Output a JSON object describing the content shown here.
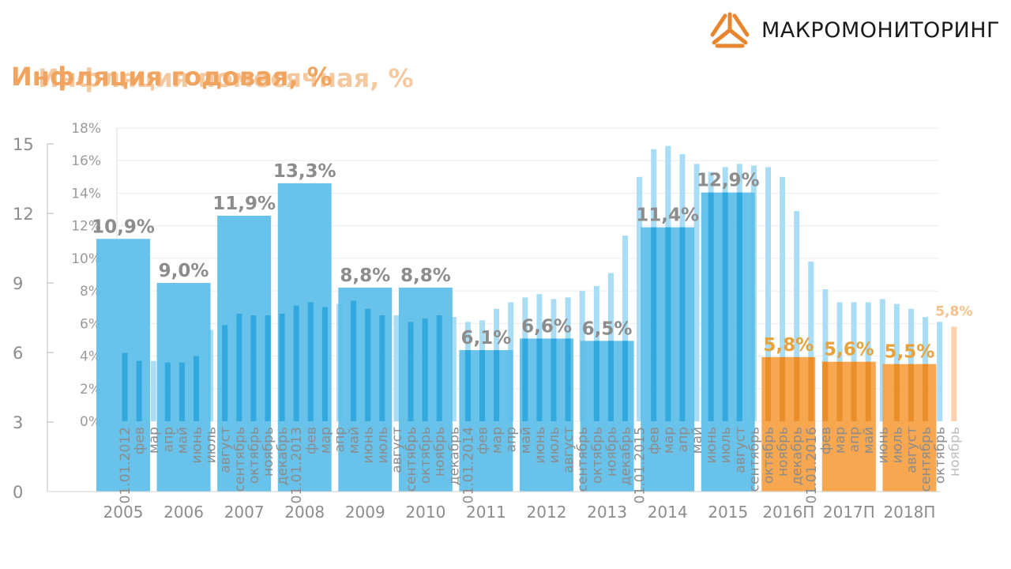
{
  "brand": {
    "name": "МАКРОМОНИТОРИНГ",
    "logo_icon": "triangle-arrows-logo-icon",
    "colors": {
      "orange": "#e8852f",
      "dark": "#1a1a1a"
    }
  },
  "titles": {
    "front": "Инфляция годовая, %",
    "back": "Инфляция помесячная, %"
  },
  "colors": {
    "annual_bar": "#5bbde8",
    "annual_bar_forecast": "#f5a040",
    "monthly_bar": "#29a3dc",
    "monthly_bar_light": "#a9dcf5",
    "monthly_bar_forecast": "#f9d2ad",
    "annual_label": "#8c8c8c",
    "annual_label_forecast": "#e8a23c",
    "axis_text": "#8c8c8c"
  },
  "chart_data": [
    {
      "type": "bar",
      "title": "Инфляция годовая, %",
      "xlabel": "",
      "ylabel": "",
      "ylim": [
        0,
        15
      ],
      "yticks": [
        "0",
        "3",
        "6",
        "9",
        "12",
        "15"
      ],
      "grid": false,
      "categories": [
        "2005",
        "2006",
        "2007",
        "2008",
        "2009",
        "2010",
        "2011",
        "2012",
        "2013",
        "2014",
        "2015",
        "2016П",
        "2017П",
        "2018П"
      ],
      "values": [
        10.9,
        9.0,
        11.9,
        13.3,
        8.8,
        8.8,
        6.1,
        6.6,
        6.5,
        11.4,
        12.9,
        5.8,
        5.6,
        5.5
      ],
      "data_labels": [
        "10,9%",
        "9,0%",
        "11,9%",
        "13,3%",
        "8,8%",
        "8,8%",
        "6,1%",
        "6,6%",
        "6,5%",
        "11,4%",
        "12,9%",
        "5,8%",
        "5,6%",
        "5,5%"
      ],
      "forecast": [
        false,
        false,
        false,
        false,
        false,
        false,
        false,
        false,
        false,
        false,
        false,
        true,
        true,
        true
      ]
    },
    {
      "type": "bar",
      "title": "Инфляция помесячная, %",
      "xlabel": "",
      "ylabel": "",
      "ylim": [
        0,
        18
      ],
      "yticks": [
        "0%",
        "2%",
        "4%",
        "6%",
        "8%",
        "10%",
        "12%",
        "14%",
        "16%",
        "18%"
      ],
      "grid": true,
      "categories": [
        "01.01.2012",
        "фев",
        "мар",
        "апр",
        "май",
        "июнь",
        "июль",
        "август",
        "сентябрь",
        "октябрь",
        "ноябрь",
        "декабрь",
        "01.01.2013",
        "фев",
        "мар",
        "апр",
        "май",
        "июнь",
        "июль",
        "август",
        "сентябрь",
        "октябрь",
        "ноябрь",
        "декабрь",
        "01.01.2014",
        "фев",
        "мар",
        "апр",
        "май",
        "июнь",
        "июль",
        "август",
        "сентябрь",
        "октябрь",
        "ноябрь",
        "декабрь",
        "01.01.2015",
        "фев",
        "мар",
        "апр",
        "май",
        "июнь",
        "июль",
        "август",
        "сентябрь",
        "октябрь",
        "ноябрь",
        "декабрь",
        "01.01.2016",
        "фев",
        "мар",
        "апр",
        "май",
        "июнь",
        "июль",
        "август",
        "сентябрь",
        "октябрь",
        "ноябрь"
      ],
      "values": [
        4.2,
        3.7,
        3.7,
        3.6,
        3.6,
        4.0,
        5.6,
        5.9,
        6.6,
        6.5,
        6.5,
        6.6,
        7.1,
        7.3,
        7.0,
        7.2,
        7.4,
        6.9,
        6.5,
        6.5,
        6.1,
        6.3,
        6.5,
        6.4,
        6.1,
        6.2,
        6.9,
        7.3,
        7.6,
        7.8,
        7.5,
        7.6,
        8.0,
        8.3,
        9.1,
        11.4,
        15.0,
        16.7,
        16.9,
        16.4,
        15.8,
        15.3,
        15.6,
        15.8,
        15.7,
        15.6,
        15.0,
        12.9,
        9.8,
        8.1,
        7.3,
        7.3,
        7.3,
        7.5,
        7.2,
        6.9,
        6.4,
        6.1,
        5.8
      ],
      "end_label": "5,8%",
      "forecast_last": true
    }
  ]
}
